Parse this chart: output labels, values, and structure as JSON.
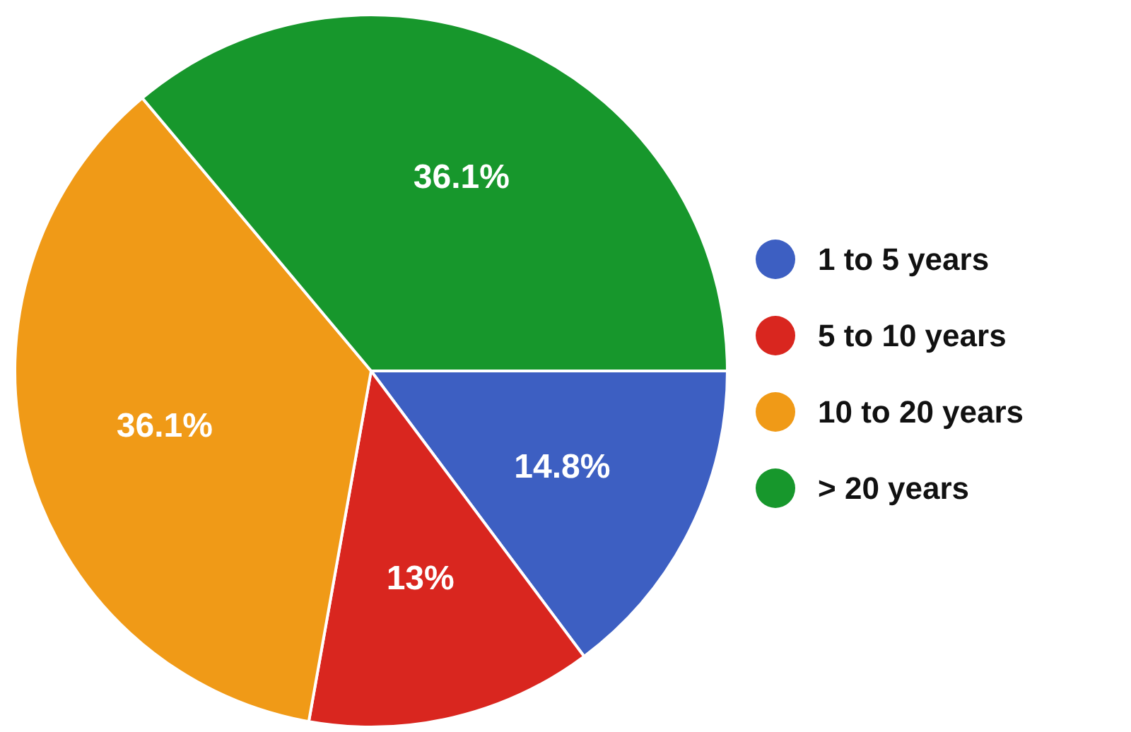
{
  "chart_data": {
    "type": "pie",
    "categories": [
      "1 to 5 years",
      "5 to 10 years",
      "10 to 20 years",
      "> 20 years"
    ],
    "values": [
      14.8,
      13,
      36.1,
      36.1
    ],
    "colors": [
      "#3d5fc2",
      "#d9261f",
      "#f09a17",
      "#17972c"
    ],
    "value_labels": [
      "14.8%",
      "13%",
      "36.1%",
      "36.1%"
    ],
    "legend": "right"
  }
}
